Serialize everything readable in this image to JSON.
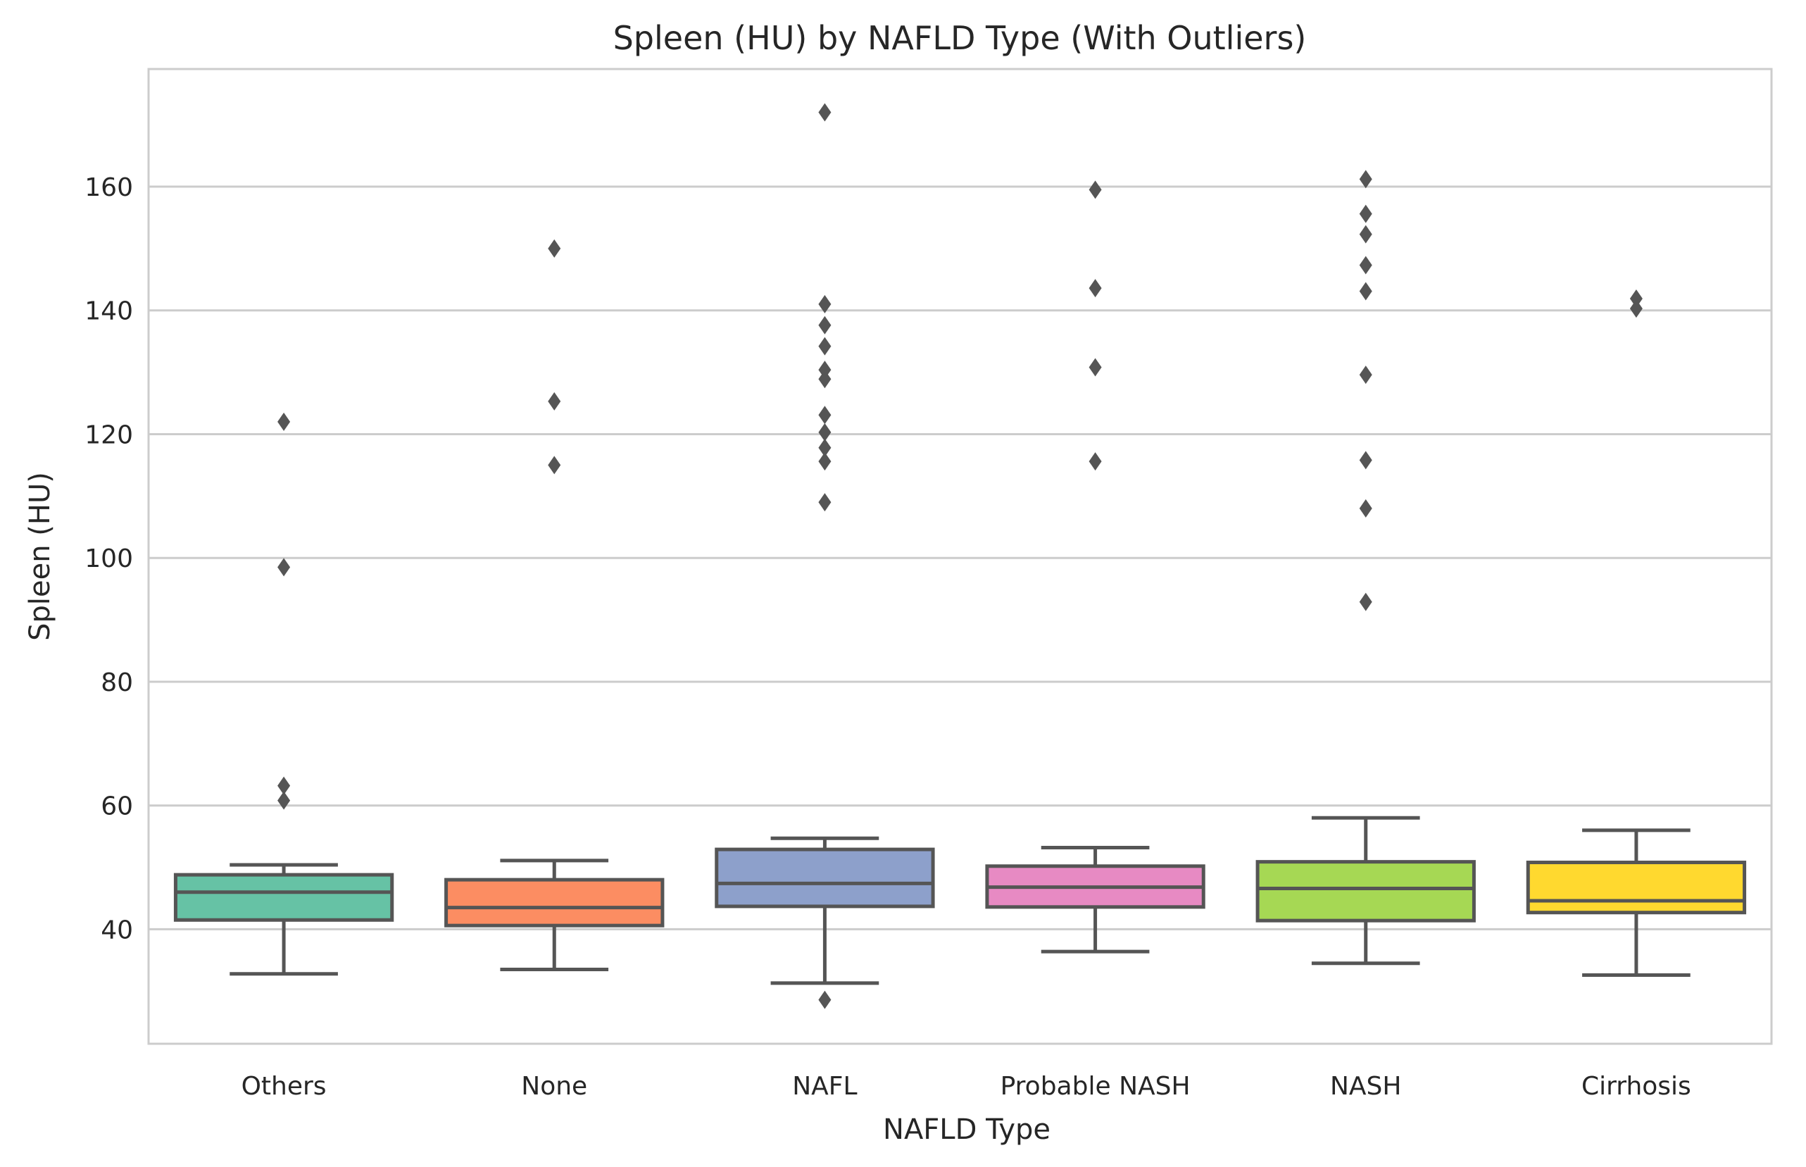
{
  "chart_data": {
    "type": "box",
    "title": "Spleen (HU) by NAFLD Type (With Outliers)",
    "xlabel": "NAFLD Type",
    "ylabel": "Spleen (HU)",
    "ylim": [
      21.5,
      179
    ],
    "yticks": [
      40,
      60,
      80,
      100,
      120,
      140,
      160
    ],
    "grid": "horizontal",
    "categories": [
      "Others",
      "None",
      "NAFL",
      "Probable NASH",
      "NASH",
      "Cirrhosis"
    ],
    "colors": [
      "#66c2a5",
      "#fc8d62",
      "#8da0cb",
      "#e78ac3",
      "#a6d854",
      "#ffd92f"
    ],
    "line_color": "#555555",
    "boxes": [
      {
        "category": "Others",
        "whisker_low": 32.8,
        "q1": 41.5,
        "median": 46.0,
        "q3": 48.8,
        "whisker_high": 50.4,
        "outliers": [
          122.0,
          98.5,
          63.2,
          60.8
        ]
      },
      {
        "category": "None",
        "whisker_low": 33.5,
        "q1": 40.6,
        "median": 43.5,
        "q3": 48.0,
        "whisker_high": 51.1,
        "outliers": [
          150.0,
          125.3,
          115.0
        ]
      },
      {
        "category": "NAFL",
        "whisker_low": 31.3,
        "q1": 43.7,
        "median": 47.4,
        "q3": 52.9,
        "whisker_high": 54.7,
        "outliers": [
          172.0,
          141.0,
          137.6,
          134.2,
          130.4,
          128.9,
          123.1,
          120.3,
          117.8,
          115.6,
          109.0,
          28.6
        ]
      },
      {
        "category": "Probable NASH",
        "whisker_low": 36.4,
        "q1": 43.6,
        "median": 46.8,
        "q3": 50.2,
        "whisker_high": 53.2,
        "outliers": [
          159.5,
          143.6,
          130.8,
          115.6
        ]
      },
      {
        "category": "NASH",
        "whisker_low": 34.5,
        "q1": 41.4,
        "median": 46.6,
        "q3": 50.9,
        "whisker_high": 58.0,
        "outliers": [
          161.2,
          155.6,
          152.3,
          147.3,
          143.1,
          129.6,
          115.8,
          108.0,
          92.9
        ]
      },
      {
        "category": "Cirrhosis",
        "whisker_low": 32.6,
        "q1": 42.7,
        "median": 44.6,
        "q3": 50.8,
        "whisker_high": 56.0,
        "outliers": [
          141.9,
          140.3
        ]
      }
    ]
  }
}
